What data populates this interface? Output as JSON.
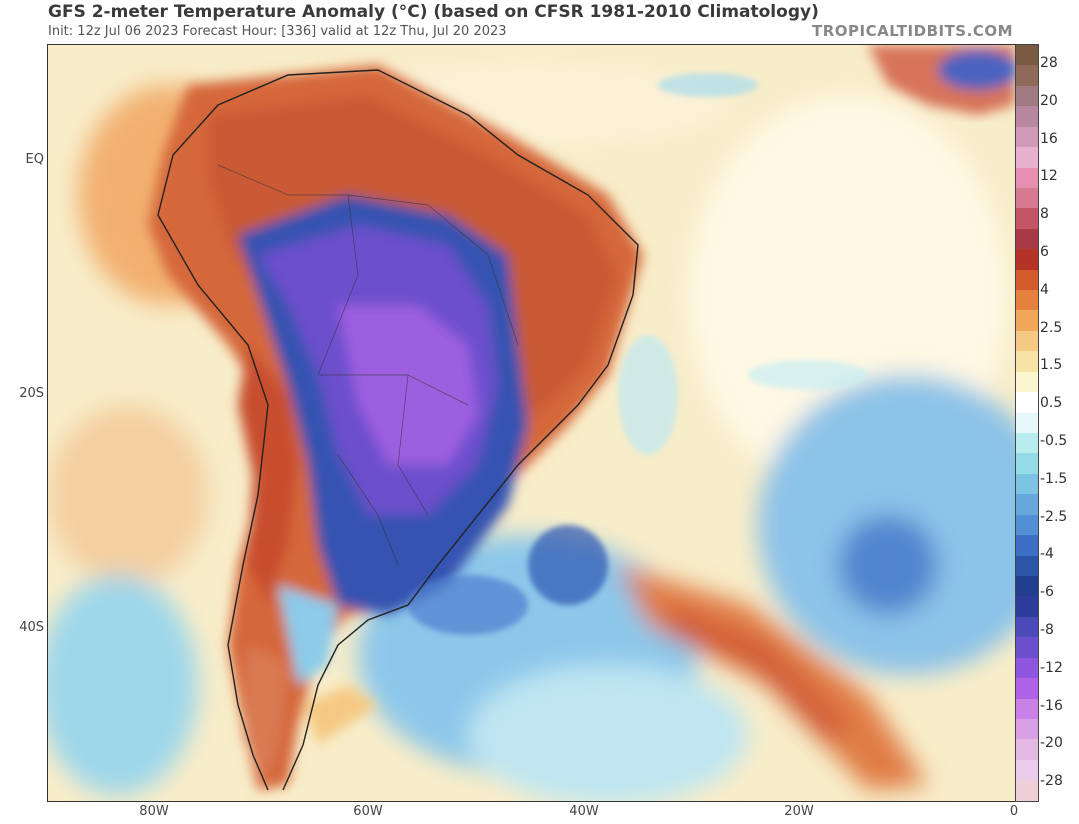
{
  "title": "GFS 2-meter Temperature Anomaly (°C) (based on CFSR 1981-2010 Climatology)",
  "subtitle": "Init: 12z Jul 06 2023   Forecast Hour: [336]   valid at 12z Thu, Jul 20 2023",
  "brand": "TROPICALTIDBITS.COM",
  "lat_labels": [
    "EQ",
    "20S",
    "40S"
  ],
  "lon_labels": [
    "80W",
    "60W",
    "40W",
    "20W",
    "0"
  ],
  "colorbar": {
    "labels": [
      "28",
      "20",
      "16",
      "12",
      "8",
      "6",
      "4",
      "2.5",
      "1.5",
      "0.5",
      "-0.5",
      "-1.5",
      "-2.5",
      "-4",
      "-6",
      "-8",
      "-12",
      "-16",
      "-20",
      "-28"
    ],
    "colors": [
      "#7a5a43",
      "#8f6a5b",
      "#9f7a80",
      "#b7889f",
      "#d19ab8",
      "#e7b0cf",
      "#e68fb0",
      "#d77a92",
      "#c25566",
      "#a83a45",
      "#b53326",
      "#d35a2b",
      "#e4813e",
      "#f0a75a",
      "#f5c983",
      "#f8e3a6",
      "#fcf6d0",
      "#ffffff",
      "#e6f8f9",
      "#b8ecef",
      "#94dbe8",
      "#7cc4e4",
      "#66a8de",
      "#518fd6",
      "#3c6fc6",
      "#2b55a7",
      "#213f8e",
      "#2e3d9b",
      "#4a4ab8",
      "#6c4fcc",
      "#8f55de",
      "#b062e6",
      "#c981e7",
      "#d8a0e6",
      "#e3b8e3",
      "#ecccec",
      "#f0d0d8"
    ]
  }
}
